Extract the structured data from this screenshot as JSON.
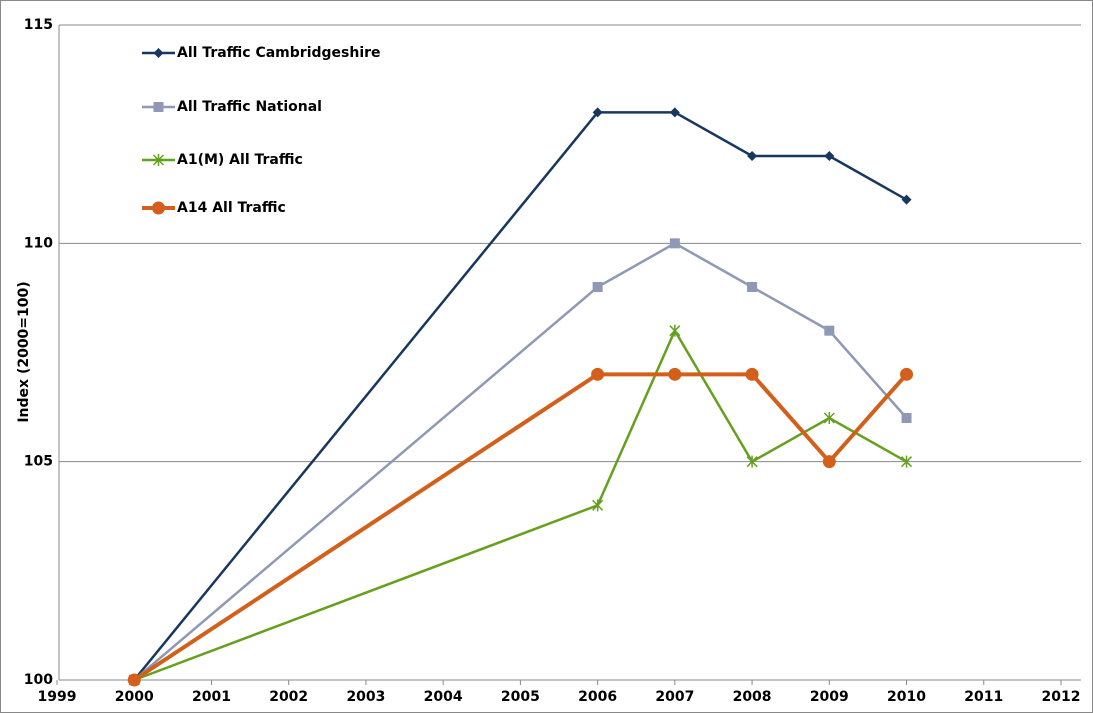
{
  "chart_data": {
    "type": "line",
    "y_label": "Index (2000=100)",
    "x": [
      2000,
      2006,
      2007,
      2008,
      2009,
      2010
    ],
    "xlim": [
      1999,
      2012
    ],
    "xticks": [
      1999,
      2000,
      2001,
      2002,
      2003,
      2004,
      2005,
      2006,
      2007,
      2008,
      2009,
      2010,
      2011,
      2012
    ],
    "ylim": [
      100,
      115
    ],
    "yticks": [
      100,
      105,
      110,
      115
    ],
    "grid": true,
    "legend": "top-left",
    "series": [
      {
        "name": "All Traffic Cambridgeshire",
        "color": "#17375e",
        "marker": "diamond",
        "width": 2.5,
        "values": [
          100,
          113,
          113,
          112,
          112,
          111
        ]
      },
      {
        "name": "All Traffic National",
        "color": "#8e99b6",
        "marker": "square",
        "width": 2.5,
        "values": [
          100,
          109,
          110,
          109,
          108,
          106
        ]
      },
      {
        "name": "A1(M) All Traffic",
        "color": "#65a01f",
        "marker": "star",
        "width": 2.5,
        "values": [
          100,
          104,
          108,
          105,
          106,
          105
        ]
      },
      {
        "name": "A14 All Traffic",
        "color": "#d2601a",
        "marker": "circle",
        "width": 4,
        "values": [
          100,
          107,
          107,
          107,
          105,
          107
        ]
      }
    ]
  }
}
